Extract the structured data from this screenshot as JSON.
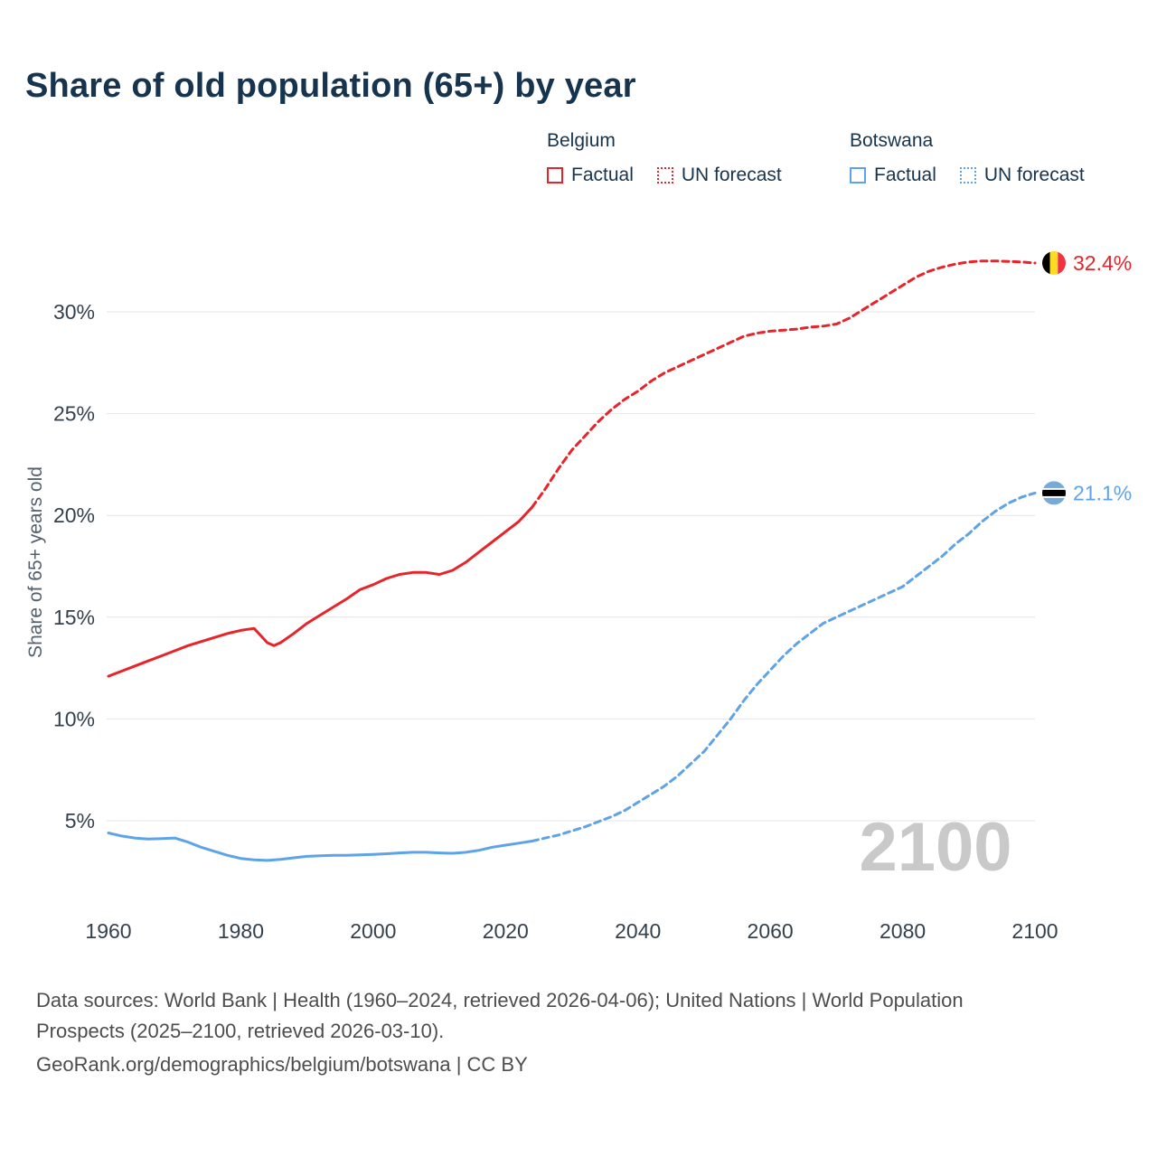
{
  "title": "Share of old population (65+) by year",
  "legend": {
    "groups": [
      {
        "country": "Belgium",
        "color": "#e8242b",
        "items": [
          {
            "label": "Factual",
            "style": "solid"
          },
          {
            "label": "UN forecast",
            "style": "dashed"
          }
        ]
      },
      {
        "country": "Botswana",
        "color": "#5ea3e8",
        "items": [
          {
            "label": "Factual",
            "style": "solid"
          },
          {
            "label": "UN forecast",
            "style": "dashed"
          }
        ]
      }
    ]
  },
  "chart_data": {
    "type": "line",
    "title": "Share of old population (65+) by year",
    "xlabel": "",
    "ylabel": "Share of 65+ years old",
    "xticks": [
      1960,
      1980,
      2000,
      2020,
      2040,
      2060,
      2080,
      2100
    ],
    "yticks": [
      5,
      10,
      15,
      20,
      25,
      30
    ],
    "xlim": [
      1960,
      2100
    ],
    "ylim": [
      2,
      33.5
    ],
    "grid": "horizontal",
    "watermark": "2100",
    "series": [
      {
        "id": "belgium-factual",
        "name": "Belgium Factual",
        "color": "#e8242b",
        "style": "solid",
        "points": [
          [
            1960,
            12.1
          ],
          [
            1962,
            12.35
          ],
          [
            1964,
            12.6
          ],
          [
            1966,
            12.85
          ],
          [
            1968,
            13.1
          ],
          [
            1970,
            13.35
          ],
          [
            1972,
            13.6
          ],
          [
            1974,
            13.8
          ],
          [
            1976,
            14.0
          ],
          [
            1978,
            14.2
          ],
          [
            1980,
            14.35
          ],
          [
            1982,
            14.45
          ],
          [
            1984,
            13.75
          ],
          [
            1985,
            13.6
          ],
          [
            1986,
            13.75
          ],
          [
            1988,
            14.2
          ],
          [
            1990,
            14.7
          ],
          [
            1992,
            15.1
          ],
          [
            1994,
            15.5
          ],
          [
            1996,
            15.9
          ],
          [
            1998,
            16.35
          ],
          [
            2000,
            16.6
          ],
          [
            2002,
            16.9
          ],
          [
            2004,
            17.1
          ],
          [
            2006,
            17.2
          ],
          [
            2008,
            17.2
          ],
          [
            2010,
            17.1
          ],
          [
            2012,
            17.3
          ],
          [
            2014,
            17.7
          ],
          [
            2016,
            18.2
          ],
          [
            2018,
            18.7
          ],
          [
            2020,
            19.2
          ],
          [
            2022,
            19.7
          ],
          [
            2024,
            20.4
          ]
        ]
      },
      {
        "id": "belgium-forecast",
        "name": "Belgium UN forecast",
        "color": "#e8242b",
        "style": "dashed",
        "points": [
          [
            2024,
            20.4
          ],
          [
            2026,
            21.3
          ],
          [
            2028,
            22.3
          ],
          [
            2030,
            23.2
          ],
          [
            2032,
            23.9
          ],
          [
            2034,
            24.6
          ],
          [
            2036,
            25.2
          ],
          [
            2038,
            25.7
          ],
          [
            2040,
            26.1
          ],
          [
            2042,
            26.6
          ],
          [
            2044,
            27.0
          ],
          [
            2046,
            27.3
          ],
          [
            2048,
            27.6
          ],
          [
            2050,
            27.9
          ],
          [
            2052,
            28.2
          ],
          [
            2054,
            28.5
          ],
          [
            2056,
            28.8
          ],
          [
            2058,
            28.95
          ],
          [
            2060,
            29.05
          ],
          [
            2062,
            29.1
          ],
          [
            2064,
            29.15
          ],
          [
            2066,
            29.25
          ],
          [
            2068,
            29.3
          ],
          [
            2070,
            29.4
          ],
          [
            2072,
            29.7
          ],
          [
            2074,
            30.1
          ],
          [
            2076,
            30.5
          ],
          [
            2078,
            30.9
          ],
          [
            2080,
            31.3
          ],
          [
            2082,
            31.7
          ],
          [
            2084,
            32.0
          ],
          [
            2086,
            32.2
          ],
          [
            2088,
            32.35
          ],
          [
            2090,
            32.45
          ],
          [
            2092,
            32.5
          ],
          [
            2094,
            32.5
          ],
          [
            2096,
            32.48
          ],
          [
            2098,
            32.45
          ],
          [
            2100,
            32.4
          ]
        ]
      },
      {
        "id": "botswana-factual",
        "name": "Botswana Factual",
        "color": "#5ea3e8",
        "style": "solid",
        "points": [
          [
            1960,
            4.4
          ],
          [
            1962,
            4.25
          ],
          [
            1964,
            4.15
          ],
          [
            1966,
            4.1
          ],
          [
            1968,
            4.12
          ],
          [
            1970,
            4.15
          ],
          [
            1972,
            3.95
          ],
          [
            1974,
            3.7
          ],
          [
            1976,
            3.5
          ],
          [
            1978,
            3.3
          ],
          [
            1980,
            3.15
          ],
          [
            1982,
            3.08
          ],
          [
            1984,
            3.05
          ],
          [
            1986,
            3.1
          ],
          [
            1988,
            3.18
          ],
          [
            1990,
            3.25
          ],
          [
            1992,
            3.28
          ],
          [
            1994,
            3.3
          ],
          [
            1996,
            3.3
          ],
          [
            1998,
            3.32
          ],
          [
            2000,
            3.35
          ],
          [
            2002,
            3.38
          ],
          [
            2004,
            3.42
          ],
          [
            2006,
            3.45
          ],
          [
            2008,
            3.45
          ],
          [
            2010,
            3.42
          ],
          [
            2012,
            3.4
          ],
          [
            2014,
            3.45
          ],
          [
            2016,
            3.55
          ],
          [
            2018,
            3.7
          ],
          [
            2020,
            3.8
          ],
          [
            2022,
            3.9
          ],
          [
            2024,
            4.0
          ]
        ]
      },
      {
        "id": "botswana-forecast",
        "name": "Botswana UN forecast",
        "color": "#5ea3e8",
        "style": "dashed",
        "points": [
          [
            2024,
            4.0
          ],
          [
            2026,
            4.15
          ],
          [
            2028,
            4.3
          ],
          [
            2030,
            4.5
          ],
          [
            2032,
            4.7
          ],
          [
            2034,
            4.95
          ],
          [
            2036,
            5.2
          ],
          [
            2038,
            5.5
          ],
          [
            2040,
            5.9
          ],
          [
            2042,
            6.3
          ],
          [
            2044,
            6.7
          ],
          [
            2046,
            7.2
          ],
          [
            2048,
            7.8
          ],
          [
            2050,
            8.4
          ],
          [
            2052,
            9.2
          ],
          [
            2054,
            10.0
          ],
          [
            2056,
            10.9
          ],
          [
            2058,
            11.7
          ],
          [
            2060,
            12.4
          ],
          [
            2062,
            13.1
          ],
          [
            2064,
            13.7
          ],
          [
            2066,
            14.2
          ],
          [
            2068,
            14.7
          ],
          [
            2070,
            15.0
          ],
          [
            2072,
            15.3
          ],
          [
            2074,
            15.6
          ],
          [
            2076,
            15.9
          ],
          [
            2078,
            16.2
          ],
          [
            2080,
            16.5
          ],
          [
            2082,
            17.0
          ],
          [
            2084,
            17.5
          ],
          [
            2086,
            18.0
          ],
          [
            2088,
            18.6
          ],
          [
            2090,
            19.1
          ],
          [
            2092,
            19.7
          ],
          [
            2094,
            20.2
          ],
          [
            2096,
            20.6
          ],
          [
            2098,
            20.9
          ],
          [
            2100,
            21.1
          ]
        ]
      }
    ],
    "end_labels": [
      {
        "flag": "belgium",
        "text": "32.4%",
        "value": 32.4,
        "color": "#e8242b"
      },
      {
        "flag": "botswana",
        "text": "21.1%",
        "value": 21.1,
        "color": "#5ea3e8"
      }
    ]
  },
  "footer": {
    "line1": "Data sources: World Bank | Health (1960–2024, retrieved 2026-04-06); United Nations | World Population Prospects (2025–2100, retrieved 2026-03-10).",
    "line2": "GeoRank.org/demographics/belgium/botswana | CC BY"
  }
}
